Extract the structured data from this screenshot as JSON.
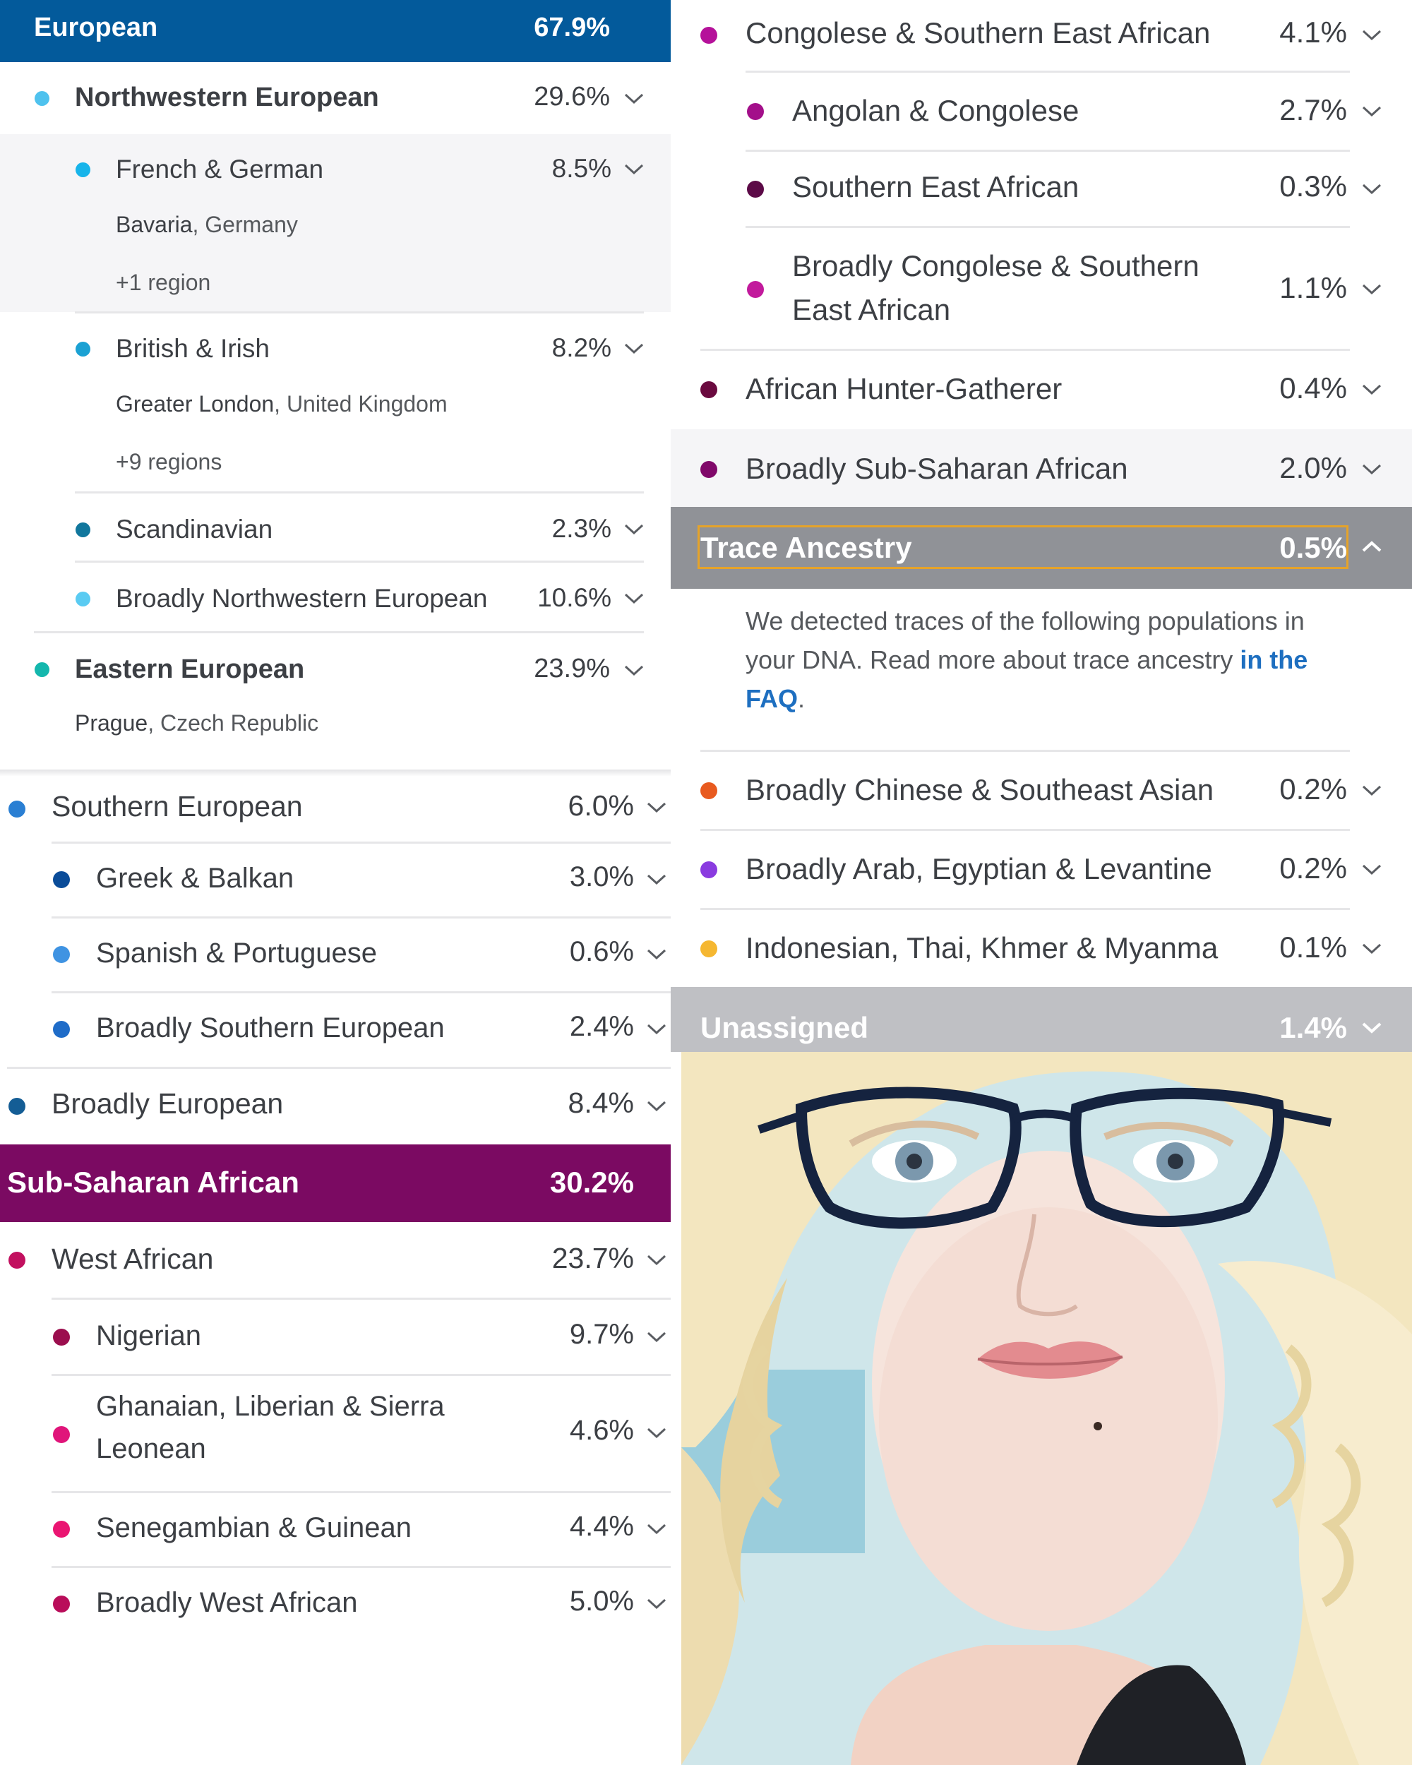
{
  "colors": {
    "european_header": "#035a9b",
    "subsaharan_header": "#7b0a62",
    "trace_header": "#909297",
    "unassigned_header": "#bfc0c4",
    "highlight_bg": "#f5f5f7",
    "trace_focus_border": "#e5a32a",
    "link": "#1e6fc0"
  },
  "european": {
    "header_label": "European",
    "header_pct": "67.9%",
    "northwestern": {
      "label": "Northwestern European",
      "pct": "29.6%",
      "dot": "#4fc2ee"
    },
    "french_german": {
      "label": "French & German",
      "pct": "8.5%",
      "dot": "#17b4ea",
      "sub_bold": "Bavaria",
      "sub_rest": ", Germany",
      "regions": "+1 region"
    },
    "british_irish": {
      "label": "British & Irish",
      "pct": "8.2%",
      "dot": "#1ba1d3",
      "sub_bold": "Greater London",
      "sub_rest": ", United Kingdom",
      "regions": "+9 regions"
    },
    "scandinavian": {
      "label": "Scandinavian",
      "pct": "2.3%",
      "dot": "#11779d"
    },
    "broadly_nw": {
      "label": "Broadly Northwestern European",
      "pct": "10.6%",
      "dot": "#5acbf2"
    },
    "eastern": {
      "label": "Eastern European",
      "pct": "23.9%",
      "dot": "#14b7ad",
      "sub_bold": "Prague",
      "sub_rest": ", Czech Republic"
    },
    "southern": {
      "label": "Southern European",
      "pct": "6.0%",
      "dot": "#2a7fd3"
    },
    "greek_balkan": {
      "label": "Greek & Balkan",
      "pct": "3.0%",
      "dot": "#0a4c99"
    },
    "spanish_portuguese": {
      "label": "Spanish & Portuguese",
      "pct": "0.6%",
      "dot": "#3f93e2"
    },
    "broadly_southern": {
      "label": "Broadly Southern European",
      "pct": "2.4%",
      "dot": "#1f6cc8"
    },
    "broadly_european": {
      "label": "Broadly European",
      "pct": "8.4%",
      "dot": "#145d95"
    }
  },
  "subsaharan": {
    "header_label": "Sub-Saharan African",
    "header_pct": "30.2%",
    "west_african": {
      "label": "West African",
      "pct": "23.7%",
      "dot": "#c2105f"
    },
    "nigerian": {
      "label": "Nigerian",
      "pct": "9.7%",
      "dot": "#9b0e4e"
    },
    "ghanaian": {
      "label_line1": "Ghanaian, Liberian & Sierra",
      "label_line2": "Leonean",
      "pct": "4.6%",
      "dot": "#e0157a"
    },
    "senegambian": {
      "label": "Senegambian & Guinean",
      "pct": "4.4%",
      "dot": "#ea1572"
    },
    "broadly_west": {
      "label": "Broadly West African",
      "pct": "5.0%",
      "dot": "#b90d5a"
    },
    "congolese": {
      "label": "Congolese & Southern East African",
      "pct": "4.1%",
      "dot": "#b5119a"
    },
    "angolan": {
      "label": "Angolan & Congolese",
      "pct": "2.7%",
      "dot": "#a30f8a"
    },
    "southern_east": {
      "label": "Southern East African",
      "pct": "0.3%",
      "dot": "#5c0a47"
    },
    "broadly_congolese": {
      "label_line1": "Broadly Congolese & Southern",
      "label_line2": "East African",
      "pct": "1.1%",
      "dot": "#c21a9c"
    },
    "hunter": {
      "label": "African Hunter-Gatherer",
      "pct": "0.4%",
      "dot": "#6a0a3f"
    },
    "broadly_subsaharan": {
      "label": "Broadly Sub-Saharan African",
      "pct": "2.0%",
      "dot": "#80086a"
    }
  },
  "trace": {
    "header_label": "Trace Ancestry",
    "header_pct": "0.5%",
    "text_line1": "We detected traces of the following populations in",
    "text_line2_pre": "your DNA. Read more about trace ancestry ",
    "link_part1": "in the",
    "link_part2": "FAQ",
    "text_end": ".",
    "chinese": {
      "label": "Broadly Chinese & Southeast Asian",
      "pct": "0.2%",
      "dot": "#e85a1f"
    },
    "arab": {
      "label": "Broadly Arab, Egyptian & Levantine",
      "pct": "0.2%",
      "dot": "#8a3be0"
    },
    "indonesian": {
      "label": "Indonesian, Thai, Khmer & Myanma",
      "pct": "0.1%",
      "dot": "#f5b731"
    }
  },
  "unassigned": {
    "label": "Unassigned",
    "pct": "1.4%"
  }
}
